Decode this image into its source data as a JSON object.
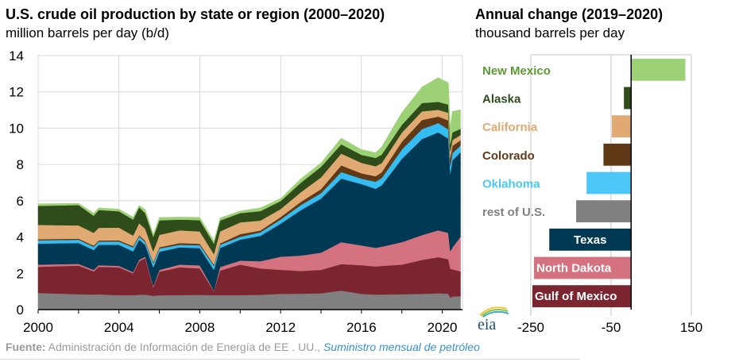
{
  "chart_data": [
    {
      "type": "area",
      "stacked": true,
      "title": "U.S. crude oil production by state or region (2000–2020)",
      "subtitle": "million barrels per day (b/d)",
      "xlabel": "",
      "ylabel": "million barrels per day (b/d)",
      "xlim": [
        2000,
        2021
      ],
      "ylim": [
        0,
        14
      ],
      "x_ticks": [
        2000,
        2004,
        2008,
        2012,
        2016,
        2020
      ],
      "x_minor_ticks": [
        2002,
        2006,
        2010,
        2014,
        2018
      ],
      "y_ticks": [
        0,
        2,
        4,
        6,
        8,
        10,
        12,
        14
      ],
      "grid": true,
      "x": [
        2000.0,
        2002.0,
        2002.75,
        2003.0,
        2004.0,
        2004.7,
        2005.0,
        2005.3,
        2005.7,
        2006.0,
        2007.0,
        2008.0,
        2008.7,
        2009.0,
        2010.0,
        2011.0,
        2012.0,
        2013.0,
        2014.0,
        2015.0,
        2016.0,
        2016.7,
        2017.0,
        2018.0,
        2019.0,
        2019.8,
        2020.3,
        2020.4,
        2020.5,
        2020.9
      ],
      "cumulative_note": "series values are each layer's own volume; stacked bottom-to-top in listed order",
      "series": [
        {
          "name": "rest of U.S.",
          "color": "#808080",
          "values": [
            0.92,
            0.85,
            0.83,
            0.84,
            0.8,
            0.8,
            0.82,
            0.83,
            0.76,
            0.79,
            0.8,
            0.82,
            0.8,
            0.8,
            0.8,
            0.82,
            0.87,
            0.88,
            0.9,
            1.05,
            0.87,
            0.83,
            0.83,
            0.85,
            0.87,
            0.9,
            0.88,
            0.66,
            0.72,
            0.74
          ]
        },
        {
          "name": "Gulf of Mexico",
          "color": "#7b2530",
          "values": [
            1.44,
            1.58,
            1.28,
            1.52,
            1.53,
            1.2,
            1.85,
            2.01,
            0.48,
            1.3,
            1.53,
            1.45,
            0.22,
            1.35,
            1.68,
            1.45,
            1.32,
            1.25,
            1.29,
            1.46,
            1.58,
            1.55,
            1.58,
            1.63,
            1.87,
            1.99,
            1.9,
            1.6,
            1.5,
            1.37
          ]
        },
        {
          "name": "North Dakota",
          "color": "#d4737f",
          "values": [
            0.12,
            0.09,
            0.08,
            0.09,
            0.08,
            0.07,
            0.08,
            0.08,
            0.07,
            0.1,
            0.15,
            0.17,
            0.03,
            0.2,
            0.22,
            0.4,
            0.73,
            0.85,
            0.95,
            1.21,
            1.09,
            1.03,
            1.06,
            1.24,
            1.37,
            1.48,
            1.45,
            0.95,
            1.2,
            1.9
          ]
        },
        {
          "name": "Texas",
          "color": "#003953",
          "values": [
            1.16,
            1.15,
            1.09,
            1.12,
            1.16,
            1.14,
            1.1,
            0.65,
            1.02,
            1.0,
            0.95,
            0.95,
            1.14,
            1.05,
            1.16,
            1.4,
            1.82,
            2.5,
            2.98,
            3.5,
            3.38,
            3.25,
            3.38,
            4.59,
            5.29,
            5.4,
            5.2,
            4.3,
            4.8,
            4.66
          ]
        },
        {
          "name": "Oklahoma",
          "color": "#33bdf2",
          "values": [
            0.18,
            0.18,
            0.18,
            0.18,
            0.18,
            0.22,
            0.18,
            0.15,
            0.22,
            0.18,
            0.14,
            0.16,
            0.22,
            0.17,
            0.15,
            0.19,
            0.22,
            0.28,
            0.3,
            0.36,
            0.3,
            0.39,
            0.4,
            0.51,
            0.55,
            0.51,
            0.5,
            0.4,
            0.4,
            0.37
          ]
        },
        {
          "name": "Colorado",
          "color": "#603a17",
          "values": [
            0.06,
            0.06,
            0.07,
            0.06,
            0.07,
            0.07,
            0.07,
            0.07,
            0.07,
            0.07,
            0.1,
            0.08,
            0.07,
            0.08,
            0.15,
            0.1,
            0.14,
            0.18,
            0.22,
            0.37,
            0.29,
            0.3,
            0.32,
            0.43,
            0.5,
            0.36,
            0.5,
            0.45,
            0.4,
            0.29
          ]
        },
        {
          "name": "California",
          "color": "#e1aa72",
          "values": [
            0.79,
            0.73,
            0.7,
            0.7,
            0.7,
            0.58,
            0.66,
            0.66,
            0.59,
            0.68,
            0.7,
            0.68,
            0.58,
            0.66,
            0.65,
            0.55,
            0.44,
            0.53,
            0.65,
            0.65,
            0.58,
            0.55,
            0.5,
            0.5,
            0.48,
            0.37,
            0.42,
            0.37,
            0.33,
            0.29
          ]
        },
        {
          "name": "Alaska",
          "color": "#2f4c1b",
          "values": [
            1.05,
            1.12,
            0.94,
            0.98,
            0.9,
            0.88,
            0.87,
            0.87,
            0.8,
            0.8,
            0.59,
            0.62,
            0.58,
            0.6,
            0.51,
            0.52,
            0.44,
            0.52,
            0.58,
            0.51,
            0.44,
            0.46,
            0.47,
            0.43,
            0.46,
            0.44,
            0.45,
            0.4,
            0.42,
            0.34
          ]
        },
        {
          "name": "New Mexico",
          "color": "#9dd175",
          "values": [
            0.11,
            0.1,
            0.15,
            0.12,
            0.12,
            0.14,
            0.12,
            0.19,
            0.15,
            0.16,
            0.14,
            0.16,
            0.15,
            0.14,
            0.12,
            0.18,
            0.14,
            0.22,
            0.22,
            0.34,
            0.29,
            0.29,
            0.43,
            0.68,
            0.88,
            1.34,
            1.2,
            0.9,
            1.15,
            1.05
          ]
        }
      ]
    },
    {
      "type": "bar",
      "orientation": "horizontal",
      "title": "Annual change (2019–2020)",
      "subtitle": "thousand barrels per day",
      "xlabel": "thousand barrels per day",
      "xlim": [
        -250,
        150
      ],
      "x_ticks": [
        -250,
        -50,
        150
      ],
      "grid": true,
      "categories": [
        "New Mexico",
        "Alaska",
        "California",
        "Colorado",
        "Oklahoma",
        "rest of U.S.",
        "Texas",
        "North Dakota",
        "Gulf of Mexico"
      ],
      "values": [
        135,
        -18,
        -48,
        -69,
        -111,
        -137,
        -204,
        -242,
        -246
      ],
      "colors": [
        "#9dd175",
        "#2f4c1b",
        "#e1aa72",
        "#603a17",
        "#4dc7f7",
        "#808080",
        "#003953",
        "#d4737f",
        "#7b2530"
      ],
      "label_colors": [
        "#5c9a33",
        "#2f4c1b",
        "#e1aa72",
        "#603a17",
        "#4dc7f7",
        "#808080",
        "#ffffff",
        "#ffffff",
        "#ffffff"
      ],
      "label_inside_bar": [
        false,
        false,
        false,
        false,
        false,
        false,
        true,
        true,
        true
      ]
    }
  ],
  "footer": {
    "source_label": "Fuente:",
    "source_text": " Administración de Información de Energía de EE . UU.,",
    "source_link": "Suministro mensual de petróleo"
  },
  "logo": {
    "text": "eia",
    "icon": "eia-logo-icon"
  },
  "colors": {
    "grid": "#d9d9d9",
    "axis": "#000000",
    "text": "#000000",
    "footer_gray": "#9a9a9a",
    "link_blue": "#3a8fd0"
  }
}
